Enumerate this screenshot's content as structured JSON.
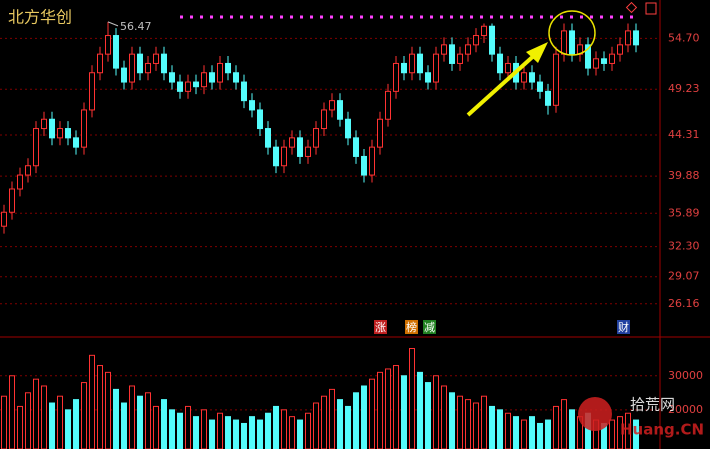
{
  "chart_data": {
    "type": "candlestick",
    "title": "北方华创",
    "high_annotation": 56.47,
    "up_color": "#ff3232",
    "down_color": "#54fcfc",
    "grid": true,
    "open": [
      34.5,
      36,
      38.5,
      40,
      41,
      45,
      46,
      44,
      45,
      44,
      43,
      47,
      51,
      53,
      55,
      51.5,
      50,
      53,
      51,
      52,
      53,
      51,
      50,
      49,
      50,
      49.5,
      51,
      50,
      52,
      51,
      50,
      48,
      47,
      45,
      43,
      41,
      43,
      44,
      42,
      43,
      45,
      47,
      48,
      46,
      44,
      42,
      40,
      43,
      46,
      49,
      52,
      51,
      53,
      51,
      50,
      53,
      54,
      52,
      53,
      54,
      55,
      56,
      53,
      51,
      52,
      50,
      51,
      50,
      49,
      47.5,
      53,
      55.5,
      53,
      54,
      51.5,
      52.5,
      52,
      53,
      54,
      55.5
    ],
    "high": [
      36.8,
      39.3,
      40.8,
      41.8,
      45.8,
      46.8,
      46.8,
      45.8,
      45.8,
      44.8,
      47.8,
      51.8,
      53.8,
      56.47,
      55.8,
      52.3,
      53.8,
      53.8,
      52.8,
      53.8,
      53.8,
      51.8,
      50.8,
      50.8,
      50.8,
      51.8,
      51.8,
      52.8,
      52.8,
      51.8,
      50.8,
      48.8,
      47.8,
      45.8,
      43.8,
      43.8,
      44.8,
      44.8,
      43.8,
      45.8,
      47.8,
      48.8,
      48.8,
      46.8,
      44.8,
      42.8,
      43.8,
      46.8,
      49.8,
      52.8,
      52.8,
      53.8,
      53.8,
      51.8,
      53.8,
      54.8,
      54.8,
      53.8,
      54.8,
      55.8,
      56.3,
      56.3,
      53.8,
      52.8,
      52.8,
      51.8,
      51.8,
      50.8,
      49.8,
      53.8,
      56.3,
      56.3,
      54.8,
      54.8,
      53.3,
      53.3,
      53.8,
      54.8,
      56.3,
      56.3
    ],
    "low": [
      33.7,
      35.2,
      37.7,
      39.2,
      40.2,
      44.2,
      43.2,
      43.2,
      43.2,
      42.2,
      42.2,
      46.2,
      50.2,
      52.2,
      50.7,
      49.2,
      49.2,
      50.2,
      50.2,
      51.2,
      50.2,
      49.2,
      48.2,
      48.2,
      48.7,
      48.7,
      49.2,
      49.2,
      50.2,
      49.2,
      47.2,
      46.2,
      44.2,
      42.2,
      40.2,
      40.2,
      42.2,
      41.2,
      41.2,
      42.2,
      44.2,
      46.2,
      45.2,
      43.2,
      41.2,
      39.2,
      39.2,
      42.2,
      45.2,
      48.2,
      50.2,
      50.2,
      50.2,
      49.2,
      49.2,
      52.2,
      51.2,
      51.2,
      52.2,
      53.2,
      54.2,
      52.2,
      50.2,
      50.2,
      49.2,
      49.2,
      49.2,
      48.2,
      46.5,
      46.7,
      52.2,
      52.2,
      52.2,
      50.7,
      50.7,
      51.2,
      51.2,
      52.2,
      53.2,
      53.2
    ],
    "close": [
      36,
      38.5,
      40,
      41,
      45,
      46,
      44,
      45,
      44,
      43,
      47,
      51,
      53,
      55,
      51.5,
      50,
      53,
      51,
      52,
      53,
      51,
      50,
      49,
      50,
      49.5,
      51,
      50,
      52,
      51,
      50,
      48,
      47,
      45,
      43,
      41,
      43,
      44,
      42,
      43,
      45,
      47,
      48,
      46,
      44,
      42,
      40,
      43,
      46,
      49,
      52,
      51,
      53,
      51,
      50,
      53,
      54,
      52,
      53,
      54,
      55,
      56,
      53,
      51,
      52,
      50,
      51,
      50,
      49,
      47.5,
      53,
      55.5,
      53,
      54,
      51.5,
      52.5,
      52,
      53,
      54,
      55.5,
      54
    ],
    "ylim": [
      22.8,
      58.5
    ],
    "yticks": [
      {
        "value": 54.7,
        "label": "54.70"
      },
      49.23,
      44.31,
      39.88,
      35.89,
      {
        "value": 32.3,
        "label": "32.30"
      },
      29.07,
      26.16
    ],
    "volume": {
      "values": [
        24000,
        30000,
        21000,
        25000,
        29000,
        27000,
        22000,
        24000,
        20000,
        23000,
        28000,
        36000,
        33000,
        31000,
        26000,
        22000,
        27000,
        24000,
        25000,
        21000,
        23000,
        20000,
        19000,
        21000,
        18000,
        20000,
        17000,
        19000,
        18000,
        17000,
        16000,
        18000,
        17000,
        19000,
        21000,
        20000,
        18000,
        17000,
        19000,
        22000,
        24000,
        26000,
        23000,
        21000,
        25000,
        27000,
        29000,
        31000,
        32000,
        33000,
        30000,
        38000,
        31000,
        28000,
        30000,
        27000,
        25000,
        24000,
        23000,
        22000,
        24000,
        21000,
        20000,
        19000,
        18000,
        17000,
        18000,
        16000,
        17000,
        21000,
        23000,
        20000,
        18000,
        19000,
        17000,
        16000,
        17000,
        18000,
        19000,
        17000
      ],
      "ylim": [
        8500,
        40500
      ],
      "yticks": [
        20000,
        30000
      ]
    },
    "badges": [
      "涨",
      "榜",
      "减",
      "财"
    ],
    "watermark": {
      "site": "拾荒网",
      "domain": "Huang.CN"
    }
  }
}
